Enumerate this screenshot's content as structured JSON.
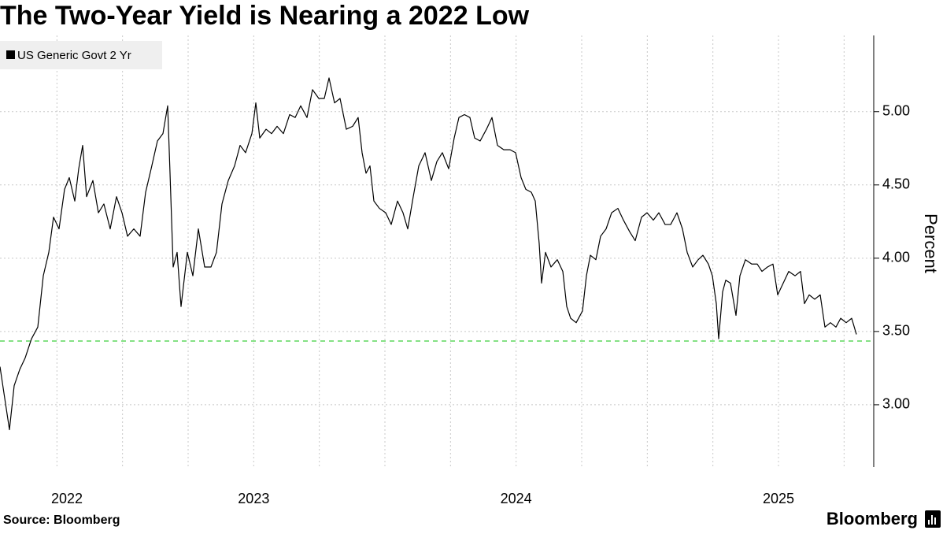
{
  "chart_data": {
    "type": "line",
    "title": "The Two-Year Yield is Nearing a 2022 Low",
    "source": "Source: Bloomberg",
    "brand": "Bloomberg",
    "y_label": "Percent",
    "legend": "top-left",
    "grid": true,
    "xlim": [
      2022.033,
      2025.363
    ],
    "ylim": [
      2.575,
      5.52
    ],
    "xticks": [
      2022,
      2023,
      2024,
      2025
    ],
    "xminor": [
      2022.25,
      2022.5,
      2022.75,
      2023.25,
      2023.5,
      2023.75,
      2024.25,
      2024.5,
      2024.75,
      2025.25
    ],
    "yticks": [
      {
        "value": 3,
        "label": "3.00"
      },
      {
        "value": 3.5,
        "label": "3.50"
      },
      {
        "value": 4,
        "label": "4.00"
      },
      {
        "value": 4.5,
        "label": "4.50"
      },
      {
        "value": 5,
        "label": "5.00"
      }
    ],
    "reference_line": {
      "value": 3.435,
      "color": "#3ccf3c"
    },
    "x": [
      2022.033,
      2022.048,
      2022.069,
      2022.087,
      2022.108,
      2022.129,
      2022.153,
      2022.177,
      2022.198,
      2022.219,
      2022.237,
      2022.258,
      2022.279,
      2022.297,
      2022.318,
      2022.333,
      2022.348,
      2022.363,
      2022.387,
      2022.408,
      2022.429,
      2022.453,
      2022.477,
      2022.498,
      2022.519,
      2022.543,
      2022.567,
      2022.588,
      2022.609,
      2022.633,
      2022.654,
      2022.672,
      2022.681,
      2022.693,
      2022.708,
      2022.723,
      2022.747,
      2022.768,
      2022.789,
      2022.813,
      2022.837,
      2022.858,
      2022.879,
      2022.903,
      2022.927,
      2022.948,
      2022.969,
      2022.993,
      2023.008,
      2023.023,
      2023.047,
      2023.068,
      2023.089,
      2023.113,
      2023.137,
      2023.158,
      2023.179,
      2023.203,
      2023.224,
      2023.248,
      2023.269,
      2023.287,
      2023.308,
      2023.329,
      2023.353,
      2023.377,
      2023.398,
      2023.413,
      2023.428,
      2023.443,
      2023.458,
      2023.479,
      2023.503,
      2023.524,
      2023.548,
      2023.569,
      2023.587,
      2023.608,
      2023.629,
      2023.653,
      2023.677,
      2023.698,
      2023.719,
      2023.743,
      2023.764,
      2023.782,
      2023.803,
      2023.824,
      2023.842,
      2023.863,
      2023.887,
      2023.908,
      2023.929,
      2023.953,
      2023.977,
      2023.998,
      2024.019,
      2024.037,
      2024.058,
      2024.073,
      2024.088,
      2024.097,
      2024.112,
      2024.133,
      2024.157,
      2024.178,
      2024.193,
      2024.208,
      2024.229,
      2024.253,
      2024.268,
      2024.283,
      2024.304,
      2024.322,
      2024.343,
      2024.364,
      2024.388,
      2024.409,
      2024.433,
      2024.454,
      2024.478,
      2024.499,
      2024.523,
      2024.544,
      2024.568,
      2024.589,
      2024.613,
      2024.634,
      2024.652,
      2024.673,
      2024.694,
      2024.712,
      2024.733,
      2024.748,
      2024.763,
      2024.772,
      2024.787,
      2024.799,
      2024.817,
      2024.838,
      2024.853,
      2024.874,
      2024.898,
      2024.919,
      2024.937,
      2024.958,
      2024.979,
      2024.997,
      2025.018,
      2025.039,
      2025.063,
      2025.084,
      2025.099,
      2025.117,
      2025.138,
      2025.159,
      2025.177,
      2025.198,
      2025.219,
      2025.237,
      2025.258,
      2025.279,
      2025.297
    ],
    "series": [
      {
        "name": "US Generic Govt 2 Yr",
        "color": "#000000",
        "values": [
          3.26,
          3.08,
          2.83,
          3.13,
          3.24,
          3.32,
          3.45,
          3.53,
          3.88,
          4.04,
          4.28,
          4.2,
          4.47,
          4.55,
          4.39,
          4.61,
          4.77,
          4.42,
          4.53,
          4.31,
          4.37,
          4.2,
          4.42,
          4.31,
          4.15,
          4.2,
          4.15,
          4.45,
          4.61,
          4.8,
          4.85,
          5.04,
          4.58,
          3.94,
          4.04,
          3.67,
          4.04,
          3.88,
          4.2,
          3.94,
          3.94,
          4.04,
          4.37,
          4.53,
          4.63,
          4.77,
          4.72,
          4.85,
          5.06,
          4.82,
          4.88,
          4.85,
          4.9,
          4.85,
          4.98,
          4.96,
          5.04,
          4.96,
          5.15,
          5.09,
          5.09,
          5.23,
          5.06,
          5.09,
          4.88,
          4.9,
          4.96,
          4.72,
          4.58,
          4.63,
          4.39,
          4.34,
          4.31,
          4.23,
          4.39,
          4.31,
          4.2,
          4.42,
          4.63,
          4.72,
          4.53,
          4.66,
          4.72,
          4.61,
          4.82,
          4.96,
          4.98,
          4.96,
          4.82,
          4.8,
          4.88,
          4.96,
          4.77,
          4.74,
          4.74,
          4.72,
          4.55,
          4.47,
          4.45,
          4.39,
          4.1,
          3.83,
          4.04,
          3.94,
          3.99,
          3.91,
          3.67,
          3.59,
          3.56,
          3.64,
          3.88,
          4.02,
          3.99,
          4.15,
          4.2,
          4.31,
          4.34,
          4.26,
          4.18,
          4.12,
          4.28,
          4.31,
          4.26,
          4.31,
          4.23,
          4.23,
          4.31,
          4.2,
          4.04,
          3.94,
          3.99,
          4.02,
          3.96,
          3.88,
          3.69,
          3.45,
          3.77,
          3.85,
          3.83,
          3.61,
          3.88,
          3.99,
          3.96,
          3.96,
          3.91,
          3.94,
          3.96,
          3.75,
          3.83,
          3.91,
          3.88,
          3.91,
          3.69,
          3.75,
          3.72,
          3.75,
          3.53,
          3.56,
          3.53,
          3.59,
          3.56,
          3.59,
          3.48
        ]
      }
    ]
  }
}
